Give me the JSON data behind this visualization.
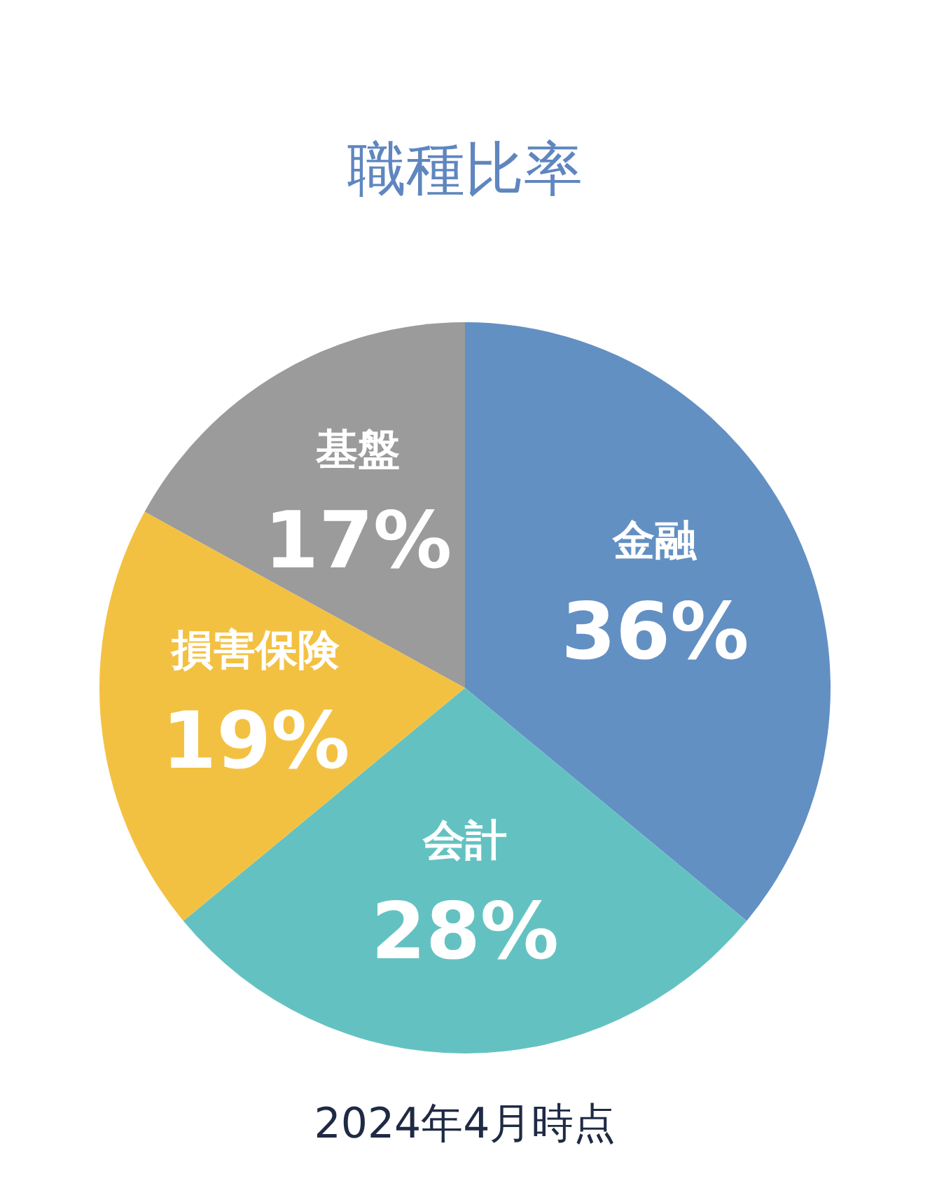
{
  "chart_data": {
    "type": "pie",
    "title": "職種比率",
    "categories": [
      "金融",
      "会計",
      "損害保険",
      "基盤"
    ],
    "values": [
      36,
      28,
      19,
      17
    ],
    "colors": [
      "#6390c3",
      "#63c2c1",
      "#f3c142",
      "#9a9b9a"
    ],
    "value_labels": [
      "36%",
      "28%",
      "19%",
      "17%"
    ],
    "annotations": [
      "2024年4月時点"
    ],
    "legend": false
  }
}
